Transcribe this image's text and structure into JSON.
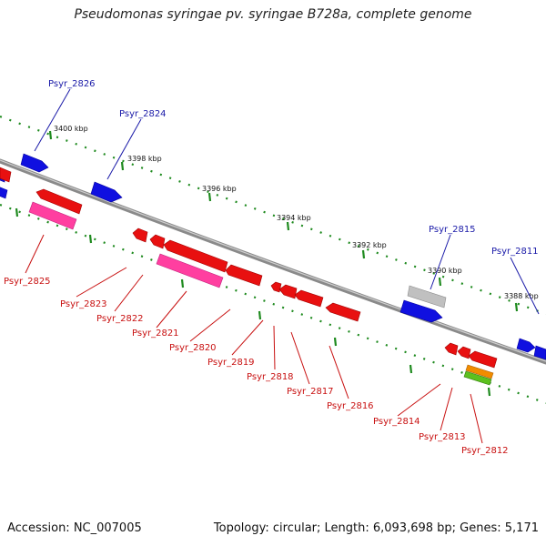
{
  "title": "Pseudomonas syringae pv. syringae B728a, complete genome",
  "footer": {
    "accession": "Accession: NC_007005",
    "topology": "Topology: circular; Length: 6,093,698 bp; Genes: 5,171"
  },
  "scale": {
    "ticks": [
      "3400 kbp",
      "3398 kbp",
      "3396 kbp",
      "3394 kbp",
      "3392 kbp",
      "3390 kbp",
      "3388 kbp"
    ]
  },
  "genes": {
    "forward": [
      "Psyr_2826",
      "Psyr_2824",
      "Psyr_2815",
      "Psyr_2811"
    ],
    "reverse": [
      "Psyr_2825",
      "Psyr_2823",
      "Psyr_2822",
      "Psyr_2821",
      "Psyr_2820",
      "Psyr_2819",
      "Psyr_2818",
      "Psyr_2817",
      "Psyr_2816",
      "Psyr_2814",
      "Psyr_2813",
      "Psyr_2812"
    ]
  },
  "colors": {
    "forward_gene": "#1010e0",
    "reverse_gene": "#e81010",
    "rna_gene": "#ff3fa0",
    "pseudo_gene": "#c0c0c0",
    "backbone": "#8a8a8a",
    "tick": "#1e8a1e",
    "forward_label": "#1a1aa8",
    "reverse_label": "#c81010"
  }
}
